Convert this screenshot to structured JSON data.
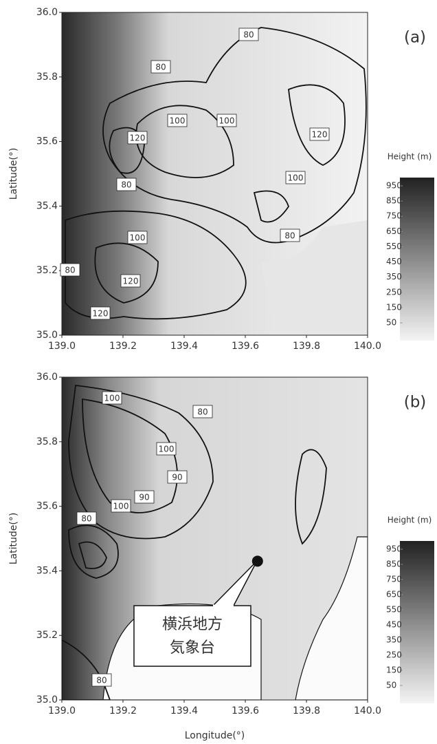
{
  "chart_data": [
    {
      "type": "contour",
      "panel_label": "(a)",
      "ylabel": "Latitude(°)",
      "xlim": [
        139.0,
        140.0
      ],
      "xticks": [
        {
          "value": 139,
          "label": "139.0"
        },
        139.2,
        139.4,
        139.6,
        139.8,
        {
          "value": 140,
          "label": "140.0"
        }
      ],
      "ylim": [
        35.0,
        36.0
      ],
      "yticks": [
        {
          "value": 35,
          "label": "35.0"
        },
        35.2,
        35.4,
        35.6,
        35.8,
        {
          "value": 36,
          "label": "36.0"
        }
      ],
      "colorbar": {
        "title": "Height (m)",
        "lim": [
          0,
          1000
        ],
        "ticks": [
          50,
          150,
          250,
          350,
          450,
          550,
          650,
          750,
          850,
          950
        ]
      },
      "contour_labels": [
        80,
        80,
        100,
        100,
        120,
        120,
        80,
        100,
        100,
        80,
        80,
        120,
        120
      ]
    },
    {
      "type": "contour",
      "panel_label": "(b)",
      "ylabel": "Latitude(°)",
      "xlabel": "Longitude(°)",
      "xlim": [
        139.0,
        140.0
      ],
      "xticks": [
        {
          "value": 139,
          "label": "139.0"
        },
        139.2,
        139.4,
        139.6,
        139.8,
        {
          "value": 140,
          "label": "140.0"
        }
      ],
      "ylim": [
        35.0,
        36.0
      ],
      "yticks": [
        {
          "value": 35,
          "label": "35.0"
        },
        35.2,
        35.4,
        35.6,
        35.8,
        {
          "value": 36,
          "label": "36.0"
        }
      ],
      "colorbar": {
        "title": "Height (m)",
        "lim": [
          0,
          1000
        ],
        "ticks": [
          50,
          150,
          250,
          350,
          450,
          550,
          650,
          750,
          850,
          950
        ]
      },
      "contour_labels": [
        100,
        80,
        100,
        90,
        80,
        90,
        100,
        80
      ],
      "station": {
        "x": 139.64,
        "y": 35.43,
        "label": [
          "横浜地方",
          "気象台"
        ]
      }
    }
  ]
}
